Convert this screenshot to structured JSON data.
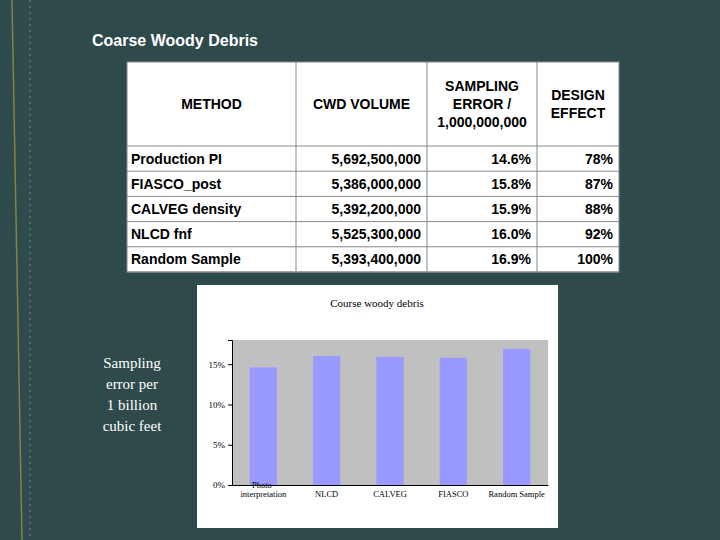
{
  "slide": {
    "title": "Coarse Woody Debris",
    "side_label": [
      "Sampling",
      "error per",
      "1 billion",
      "cubic feet"
    ]
  },
  "table": {
    "header": [
      [
        "METHOD"
      ],
      [
        "CWD VOLUME"
      ],
      [
        "SAMPLING",
        "ERROR /",
        "1,000,000,000"
      ],
      [
        "DESIGN",
        "EFFECT"
      ]
    ],
    "rows": [
      [
        "Production PI",
        "5,692,500,000",
        "14.6%",
        "78%"
      ],
      [
        "FIASCO_post",
        "5,386,000,000",
        "15.8%",
        "87%"
      ],
      [
        "CALVEG density",
        "5,392,200,000",
        "15.9%",
        "88%"
      ],
      [
        "NLCD fnf",
        "5,525,300,000",
        "16.0%",
        "92%"
      ],
      [
        "Random Sample",
        "5,393,400,000",
        "16.9%",
        "100%"
      ]
    ]
  },
  "chart_data": {
    "type": "bar",
    "title": "Course woody debris",
    "categories": [
      "Photo-interpretation",
      "NLCD",
      "CALVEG",
      "FIASCO",
      "Random Sample"
    ],
    "values": [
      14.6,
      16.0,
      15.9,
      15.8,
      16.9
    ],
    "color": "#9999ff",
    "ylim": [
      0,
      18
    ],
    "yticks": [
      {
        "value": 0,
        "label": "0%"
      },
      {
        "value": 5,
        "label": "5%"
      },
      {
        "value": 10,
        "label": "10%"
      },
      {
        "value": 15,
        "label": "15%"
      }
    ],
    "grid": false
  }
}
